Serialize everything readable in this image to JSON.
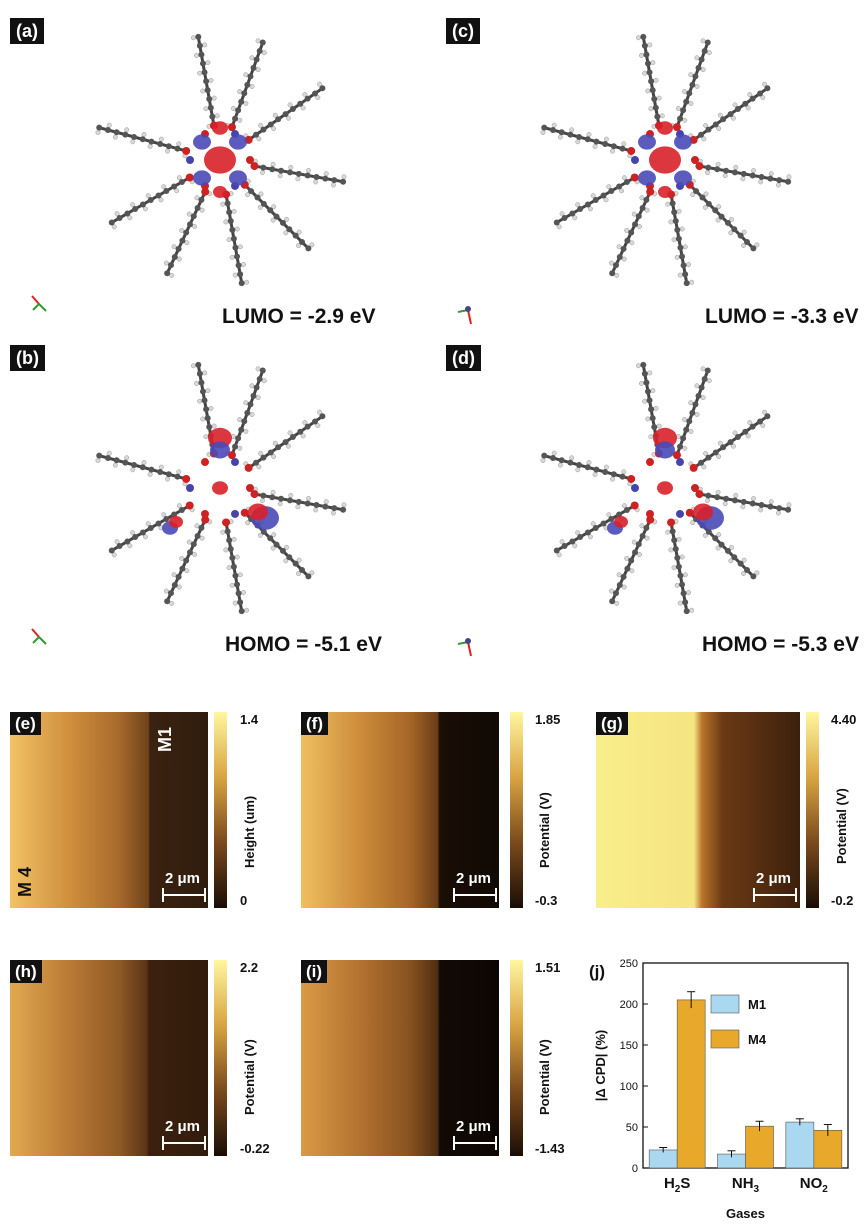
{
  "panels_top": [
    {
      "id": "a",
      "label": "(a)",
      "orbital": "LUMO = -2.9 eV"
    },
    {
      "id": "c",
      "label": "(c)",
      "orbital": "LUMO = -3.3 eV"
    },
    {
      "id": "b",
      "label": "(b)",
      "orbital": "HOMO = -5.1 eV"
    },
    {
      "id": "d",
      "label": "(d)",
      "orbital": "HOMO = -5.3 eV"
    }
  ],
  "maps": [
    {
      "id": "e",
      "label": "(e)",
      "cb_max": "1.4",
      "cb_min": "0",
      "cb_title": "Height (um)",
      "scale": "2 μm",
      "left_text": "M 4",
      "right_text": "M1"
    },
    {
      "id": "f",
      "label": "(f)",
      "cb_max": "1.85",
      "cb_min": "-0.3",
      "cb_title": "Potential (V)",
      "scale": "2 μm"
    },
    {
      "id": "g",
      "label": "(g)",
      "cb_max": "4.40",
      "cb_min": "-0.2",
      "cb_title": "Potential (V)",
      "scale": "2 μm"
    },
    {
      "id": "h",
      "label": "(h)",
      "cb_max": "2.2",
      "cb_min": "-0.22",
      "cb_title": "Potential (V)",
      "scale": "2 μm"
    },
    {
      "id": "i",
      "label": "(i)",
      "cb_max": "1.51",
      "cb_min": "-1.43",
      "cb_title": "Potential (V)",
      "scale": "2 μm"
    }
  ],
  "chart_label": "(j)",
  "chart_data": {
    "type": "bar",
    "categories": [
      "H2S",
      "NH3",
      "NO2"
    ],
    "series": [
      {
        "name": "M1",
        "values": [
          22,
          17,
          56
        ],
        "errors": [
          3,
          4,
          4
        ],
        "color": "#a9d8f0"
      },
      {
        "name": "M4",
        "values": [
          205,
          51,
          46
        ],
        "errors": [
          10,
          6,
          7
        ],
        "color": "#e8a92a"
      }
    ],
    "ylabel": "|Δ CPD| (%)",
    "xlabel": "Gases",
    "ylim": [
      0,
      250
    ],
    "yticks": [
      0,
      50,
      100,
      150,
      200,
      250
    ],
    "legend_position": "upper-center"
  }
}
